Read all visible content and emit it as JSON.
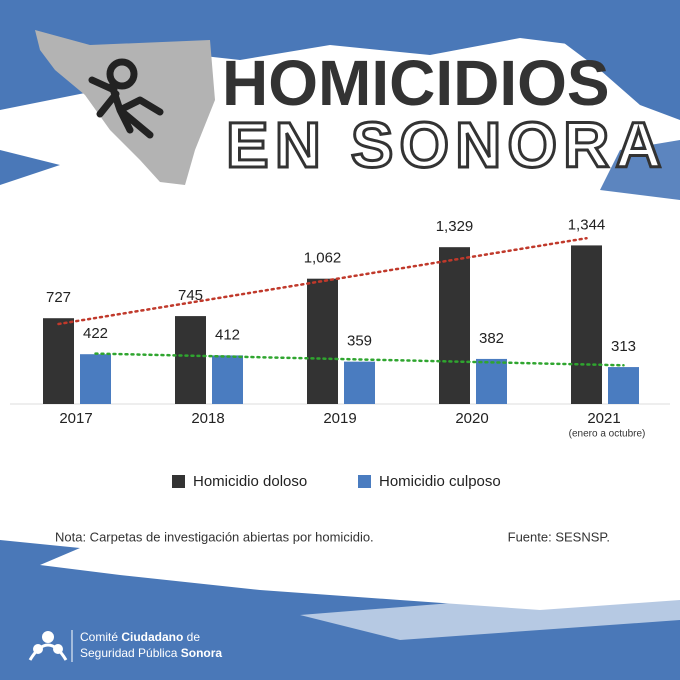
{
  "header": {
    "title_line1": "HOMICIDIOS",
    "title_line2": "EN SONORA"
  },
  "chart_data": {
    "type": "bar",
    "categories": [
      "2017",
      "2018",
      "2019",
      "2020",
      "2021"
    ],
    "category_notes": [
      null,
      null,
      null,
      null,
      "(enero a octubre)"
    ],
    "series": [
      {
        "name": "Homicidio doloso",
        "color": "#333333",
        "trend_color": "#c0392b",
        "values": [
          727,
          745,
          1062,
          1329,
          1344
        ],
        "value_labels": [
          "727",
          "745",
          "1,062",
          "1,329",
          "1,344"
        ]
      },
      {
        "name": "Homicidio culposo",
        "color": "#4a7cc0",
        "trend_color": "#2fa52f",
        "values": [
          422,
          412,
          359,
          382,
          313
        ]
      }
    ],
    "ylim": [
      0,
      1500
    ],
    "trendline": true,
    "grid": false
  },
  "footer": {
    "note": "Nota: Carpetas de investigación abiertas por homicidio.",
    "source": "Fuente: SESNSP.",
    "logo_line1_a": "Comité ",
    "logo_line1_b": "Ciudadano",
    "logo_line1_c": " de",
    "logo_line2_a": "Seguridad Pública ",
    "logo_line2_b": "Sonora"
  }
}
